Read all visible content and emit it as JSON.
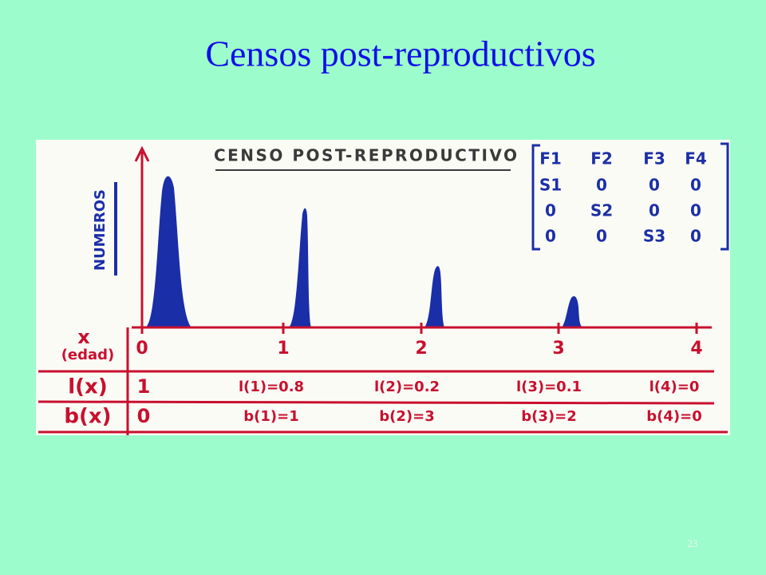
{
  "title": "Censos post-reproductivos",
  "figure": {
    "heading": "CENSO POST-REPRODUCTIVO",
    "y_label": "NUMEROS",
    "matrix": [
      [
        "F1",
        "F2",
        "F3",
        "F4"
      ],
      [
        "S1",
        "0",
        "0",
        "0"
      ],
      [
        "0",
        "S2",
        "0",
        "0"
      ],
      [
        "0",
        "0",
        "S3",
        "0"
      ]
    ],
    "x_label": "x",
    "x_sublabel": "(edad)",
    "x_ticks": [
      "0",
      "1",
      "2",
      "3",
      "4"
    ],
    "rows": [
      {
        "label": "l(x)",
        "cells": [
          "1",
          "l(1)=0.8",
          "l(2)=0.2",
          "l(3)=0.1",
          "l(4)=0"
        ]
      },
      {
        "label": "b(x)",
        "cells": [
          "0",
          "b(1)=1",
          "b(2)=3",
          "b(3)=2",
          "b(4)=0"
        ]
      }
    ]
  },
  "page_number": "23"
}
